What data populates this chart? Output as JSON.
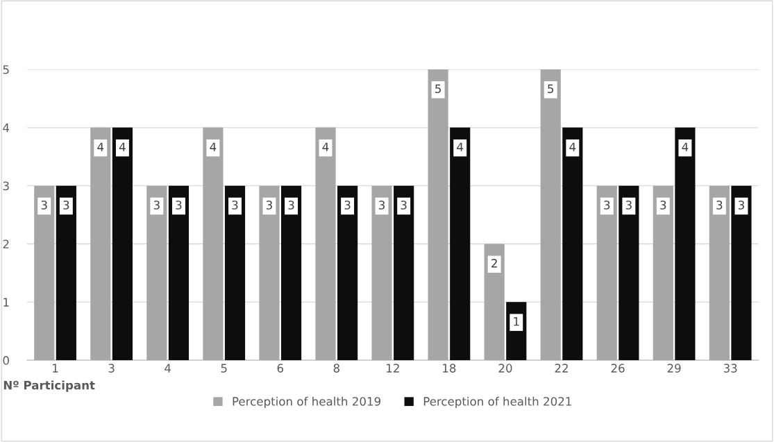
{
  "chart_data": {
    "type": "bar",
    "xlabel": "Nº Participant",
    "categories": [
      "1",
      "3",
      "4",
      "5",
      "6",
      "8",
      "12",
      "18",
      "20",
      "22",
      "26",
      "29",
      "33"
    ],
    "series": [
      {
        "name": "Perception of health 2019",
        "color": "#a6a6a6",
        "values": [
          3,
          4,
          3,
          4,
          3,
          4,
          3,
          5,
          2,
          5,
          3,
          3,
          3
        ]
      },
      {
        "name": "Perception of health 2021",
        "color": "#0d0d0d",
        "values": [
          3,
          4,
          3,
          3,
          3,
          3,
          3,
          4,
          1,
          4,
          3,
          4,
          3
        ]
      }
    ],
    "ylim": [
      0,
      5
    ],
    "yticks": [
      0,
      1,
      2,
      3,
      4,
      5
    ],
    "grid": "y",
    "legend": "bottom",
    "data_labels": true
  }
}
